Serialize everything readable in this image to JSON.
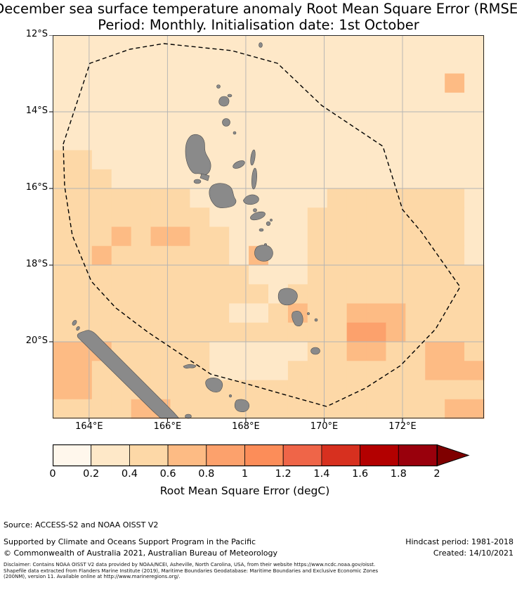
{
  "chart_data": {
    "type": "heatmap",
    "title": "December sea surface temperature anomaly Root Mean Square Error (RMSE)",
    "subtitle": "Period: Monthly. Initialisation date: 1st October",
    "x_ticks": [
      "164°E",
      "166°E",
      "168°E",
      "170°E",
      "172°E"
    ],
    "x_tick_values": [
      164,
      166,
      168,
      170,
      172
    ],
    "y_ticks": [
      "12°S",
      "14°S",
      "16°S",
      "18°S",
      "20°S"
    ],
    "y_tick_values": [
      12,
      14,
      16,
      18,
      20
    ],
    "lon_range": [
      163.07,
      174.08
    ],
    "lat_range": [
      12,
      22
    ],
    "grid_lines": true,
    "legend_position": "bottom",
    "grid": {
      "description": "Estimated RMSE (degC) per 0.5-degree cell; rows north to south (12S-22S), cols west to east (163E-174E); values read from map colours against colorbar",
      "cell_deg": 0.5,
      "values": [
        [
          0.25,
          0.25,
          0.25,
          0.25,
          0.25,
          0.25,
          0.25,
          0.25,
          0.25,
          0.25,
          0.25,
          0.25,
          0.25,
          0.25,
          0.25,
          0.25,
          0.25,
          0.25,
          0.25,
          0.25,
          0.25,
          0.25
        ],
        [
          0.25,
          0.25,
          0.25,
          0.25,
          0.25,
          0.25,
          0.25,
          0.25,
          0.25,
          0.25,
          0.25,
          0.25,
          0.25,
          0.25,
          0.25,
          0.25,
          0.25,
          0.25,
          0.25,
          0.25,
          0.25,
          0.25
        ],
        [
          0.25,
          0.25,
          0.25,
          0.25,
          0.25,
          0.25,
          0.25,
          0.25,
          0.25,
          0.25,
          0.25,
          0.25,
          0.25,
          0.25,
          0.25,
          0.25,
          0.25,
          0.25,
          0.25,
          0.25,
          0.65,
          0.25
        ],
        [
          0.25,
          0.25,
          0.25,
          0.25,
          0.25,
          0.25,
          0.25,
          0.25,
          0.25,
          0.25,
          0.25,
          0.25,
          0.25,
          0.25,
          0.25,
          0.25,
          0.25,
          0.25,
          0.25,
          0.25,
          0.25,
          0.25
        ],
        [
          0.25,
          0.25,
          0.25,
          0.25,
          0.25,
          0.25,
          0.25,
          0.25,
          0.25,
          0.25,
          0.25,
          0.25,
          0.25,
          0.25,
          0.25,
          0.25,
          0.25,
          0.25,
          0.25,
          0.25,
          0.25,
          0.25
        ],
        [
          0.25,
          0.25,
          0.25,
          0.25,
          0.25,
          0.25,
          0.25,
          0.25,
          0.25,
          0.25,
          0.25,
          0.25,
          0.25,
          0.25,
          0.25,
          0.25,
          0.25,
          0.25,
          0.25,
          0.25,
          0.25,
          0.25
        ],
        [
          0.45,
          0.45,
          0.25,
          0.25,
          0.25,
          0.25,
          0.25,
          0.25,
          0.25,
          0.25,
          0.25,
          0.25,
          0.25,
          0.25,
          0.25,
          0.25,
          0.25,
          0.25,
          0.25,
          0.25,
          0.25,
          0.25
        ],
        [
          0.45,
          0.45,
          0.45,
          0.25,
          0.25,
          0.25,
          0.25,
          0.25,
          0.25,
          0.25,
          0.25,
          0.25,
          0.25,
          0.25,
          0.25,
          0.25,
          0.25,
          0.25,
          0.25,
          0.25,
          0.25,
          0.25
        ],
        [
          0.45,
          0.45,
          0.45,
          0.45,
          0.45,
          0.45,
          0.45,
          0.25,
          0.25,
          0.25,
          0.25,
          0.25,
          0.25,
          0.25,
          0.45,
          0.45,
          0.45,
          0.45,
          0.45,
          0.45,
          0.45,
          0.25
        ],
        [
          0.45,
          0.45,
          0.45,
          0.45,
          0.45,
          0.45,
          0.45,
          0.45,
          0.25,
          0.25,
          0.25,
          0.25,
          0.25,
          0.45,
          0.45,
          0.45,
          0.45,
          0.45,
          0.45,
          0.45,
          0.45,
          0.25
        ],
        [
          0.45,
          0.45,
          0.45,
          0.65,
          0.45,
          0.65,
          0.65,
          0.45,
          0.45,
          0.25,
          0.25,
          0.25,
          0.25,
          0.45,
          0.45,
          0.45,
          0.45,
          0.45,
          0.45,
          0.45,
          0.45,
          0.25
        ],
        [
          0.45,
          0.45,
          0.65,
          0.45,
          0.45,
          0.45,
          0.45,
          0.45,
          0.45,
          0.25,
          0.65,
          0.25,
          0.25,
          0.45,
          0.45,
          0.45,
          0.45,
          0.45,
          0.45,
          0.45,
          0.45,
          0.25
        ],
        [
          0.45,
          0.45,
          0.45,
          0.45,
          0.45,
          0.45,
          0.45,
          0.45,
          0.45,
          0.45,
          0.25,
          0.25,
          0.25,
          0.45,
          0.45,
          0.45,
          0.45,
          0.45,
          0.45,
          0.45,
          0.45,
          0.45
        ],
        [
          0.45,
          0.45,
          0.45,
          0.45,
          0.45,
          0.45,
          0.45,
          0.45,
          0.45,
          0.45,
          0.45,
          0.25,
          0.45,
          0.45,
          0.45,
          0.45,
          0.45,
          0.45,
          0.45,
          0.45,
          0.45,
          0.45
        ],
        [
          0.45,
          0.45,
          0.45,
          0.45,
          0.45,
          0.45,
          0.45,
          0.45,
          0.45,
          0.25,
          0.25,
          0.45,
          0.65,
          0.45,
          0.45,
          0.65,
          0.65,
          0.65,
          0.45,
          0.45,
          0.45,
          0.45
        ],
        [
          0.45,
          0.45,
          0.45,
          0.45,
          0.45,
          0.45,
          0.45,
          0.45,
          0.45,
          0.45,
          0.45,
          0.45,
          0.45,
          0.45,
          0.45,
          0.85,
          0.85,
          0.65,
          0.45,
          0.45,
          0.45,
          0.45
        ],
        [
          0.65,
          0.65,
          0.65,
          0.45,
          0.45,
          0.45,
          0.45,
          0.45,
          0.25,
          0.25,
          0.25,
          0.25,
          0.25,
          0.45,
          0.45,
          0.65,
          0.65,
          0.45,
          0.45,
          0.65,
          0.65,
          0.45
        ],
        [
          0.65,
          0.65,
          0.45,
          0.45,
          0.45,
          0.45,
          0.45,
          0.45,
          0.25,
          0.25,
          0.25,
          0.25,
          0.45,
          0.45,
          0.45,
          0.45,
          0.45,
          0.45,
          0.45,
          0.65,
          0.65,
          0.65
        ],
        [
          0.65,
          0.65,
          0.45,
          0.45,
          0.45,
          0.45,
          0.45,
          0.45,
          0.45,
          0.45,
          0.45,
          0.45,
          0.45,
          0.45,
          0.45,
          0.45,
          0.45,
          0.45,
          0.45,
          0.45,
          0.45,
          0.45
        ],
        [
          0.45,
          0.45,
          0.45,
          0.45,
          0.65,
          0.65,
          0.45,
          0.45,
          0.45,
          0.45,
          0.45,
          0.45,
          0.45,
          0.45,
          0.45,
          0.45,
          0.45,
          0.45,
          0.45,
          0.45,
          0.65,
          0.65
        ]
      ]
    },
    "colorbar": {
      "label": "Root Mean Square Error (degC)",
      "ticks": [
        "0",
        "0.2",
        "0.4",
        "0.6",
        "0.8",
        "1",
        "1.2",
        "1.4",
        "1.6",
        "1.8",
        "2"
      ],
      "range": [
        0,
        2
      ],
      "segment_colors": [
        "#fff7ec",
        "#fee8c8",
        "#fdd8a7",
        "#fdbb84",
        "#fca16c",
        "#fc8d59",
        "#ef6548",
        "#d7301f",
        "#b30000",
        "#99000c"
      ],
      "arrow_color": "#7f0000"
    },
    "map_features": {
      "boundary": "EEZ boundary (dashed line)",
      "land": [
        "Torres and Banks Islands",
        "Espiritu Santo",
        "Ambae",
        "Maewo",
        "Pentecost",
        "Malakula",
        "Ambrym",
        "Epi",
        "Shepherd Islands",
        "Efate",
        "Erromango",
        "Tanna",
        "Aneityum",
        "New Caledonia Grande Terre",
        "Belep",
        "Ouvea",
        "Lifou",
        "Tiga",
        "Mare",
        "Isle of Pines"
      ]
    }
  },
  "footer": {
    "source": "Source: ACCESS-S2 and NOAA OISST V2",
    "supported": "Supported by Climate and Oceans Support Program in the Pacific",
    "hindcast": "Hindcast period: 1981-2018",
    "copyright": "© Commonwealth of Australia 2021, Australian Bureau of Meteorology",
    "created": "Created: 14/10/2021",
    "disclaimer_line1": "Disclaimer: Contains NOAA OISST V2 data provided by NOAA/NCEI, Asheville, North Carolina, USA, from their website https://www.ncdc.noaa.gov/oisst.",
    "disclaimer_line2": "Shapefile data extracted from Flanders Marine Institute (2019), Maritime Boundaries Geodatabase: Maritime Boundaries and Exclusive Economic Zones",
    "disclaimer_line3": "(200NM), version 11. Available online at http://www.marineregions.org/."
  },
  "colors": {
    "land": "#8a8a8a",
    "land_edge": "#4f4f4f",
    "grid_line": "#b3b3b3",
    "eez_boundary": "#000000",
    "frame": "#2b2b2b",
    "background": "#ffffff"
  }
}
